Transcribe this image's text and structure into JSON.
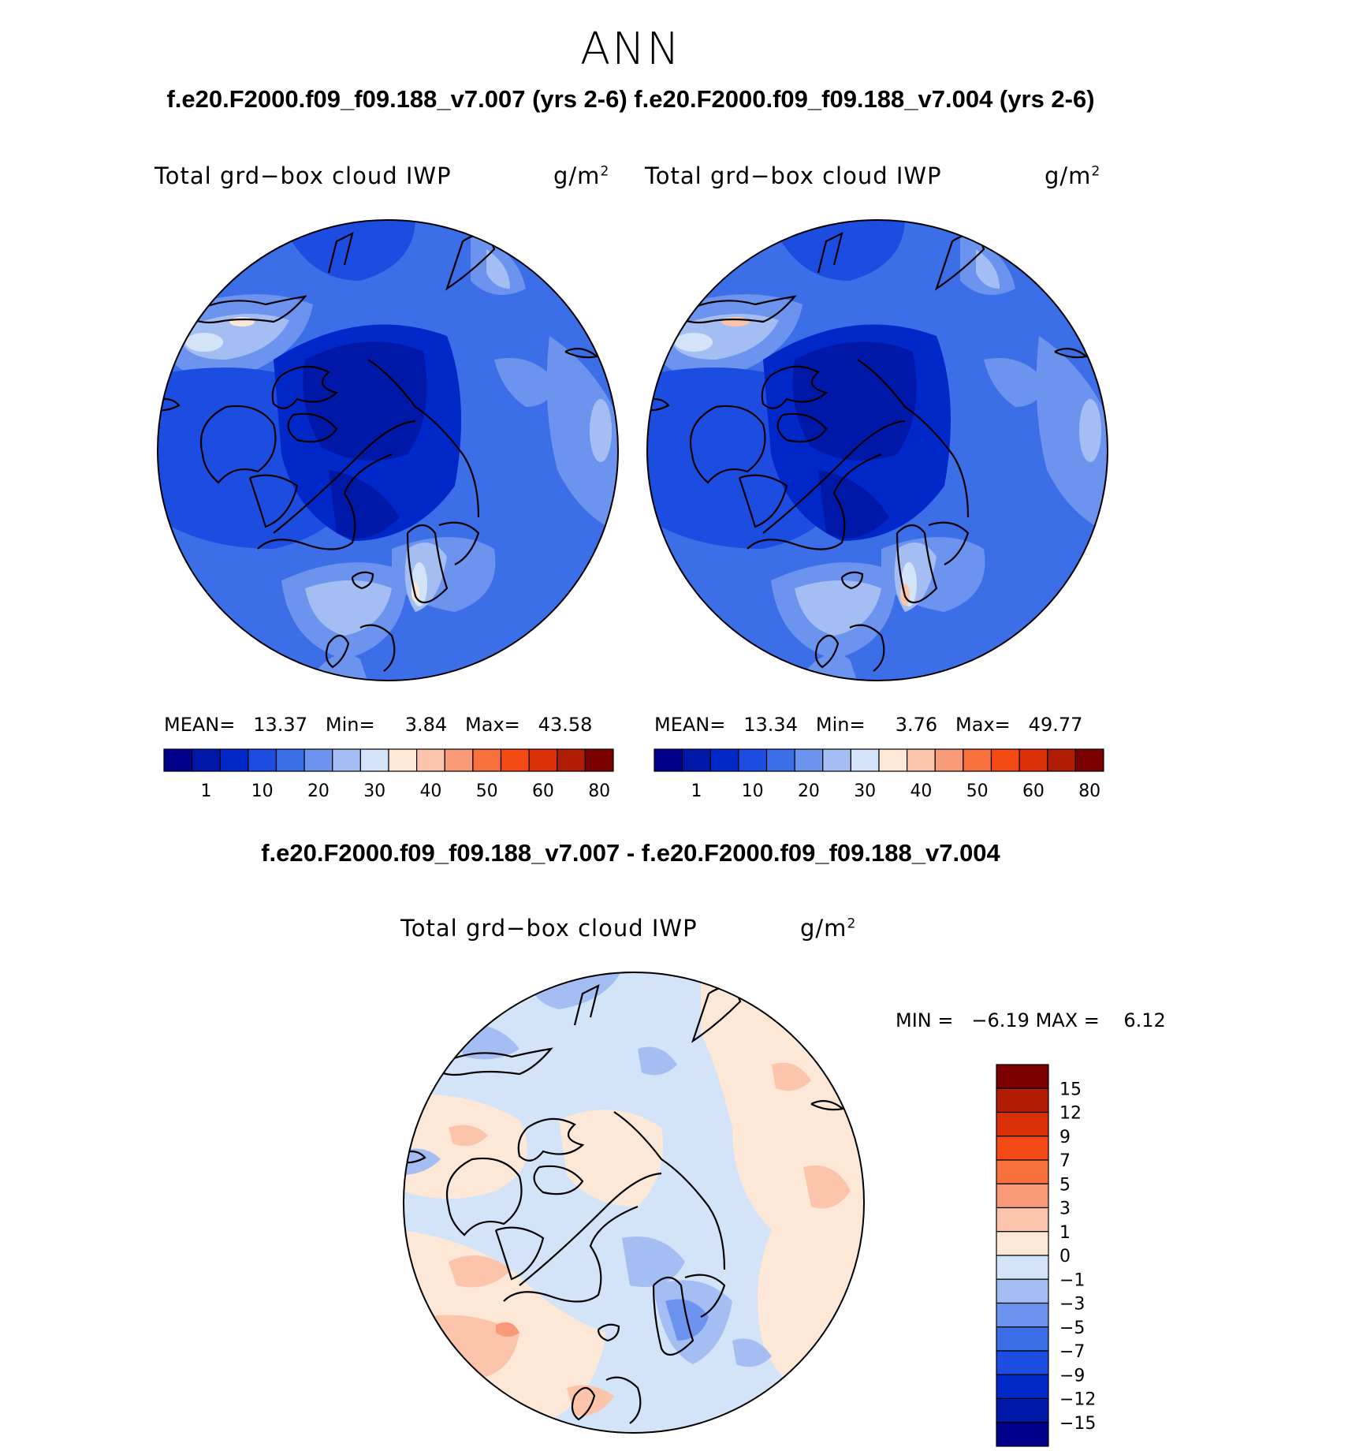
{
  "season": "ANN",
  "case_titles": "f.e20.F2000.f09_f09.188_v7.007 (yrs 2-6) f.e20.F2000.f09_f09.188_v7.004 (yrs 2-6)",
  "diff_title": "f.e20.F2000.f09_f09.188_v7.007 - f.e20.F2000.f09_f09.188_v7.004",
  "panels": [
    {
      "variable": "Total grd−box cloud IWP",
      "units": "g/m",
      "units_sup": "2",
      "mean_label": "MEAN=",
      "mean": "13.37",
      "min_label": "Min=",
      "min": "3.84",
      "max_label": "Max=",
      "max": "43.58"
    },
    {
      "variable": "Total grd−box cloud IWP",
      "units": "g/m",
      "units_sup": "2",
      "mean_label": "MEAN=",
      "mean": "13.34",
      "min_label": "Min=",
      "min": "3.76",
      "max_label": "Max=",
      "max": "49.77"
    }
  ],
  "diff_panel": {
    "variable": "Total grd−box cloud IWP",
    "units": "g/m",
    "units_sup": "2",
    "min_label": "MIN =",
    "min": "−6.19",
    "max_label": "MAX =",
    "max": "6.12"
  },
  "colorbar_ticks": [
    "1",
    "10",
    "20",
    "30",
    "40",
    "50",
    "60",
    "80"
  ],
  "colorbar_colors": [
    "#00008a",
    "#0018a8",
    "#0028c8",
    "#1c4de0",
    "#3c6ee8",
    "#6c94ee",
    "#a4bef4",
    "#d4e4f8",
    "#fde8d8",
    "#fcc4aa",
    "#f89a78",
    "#f8703c",
    "#f44a14",
    "#dc3008",
    "#b01c04",
    "#7c0000"
  ],
  "diff_ticks": [
    "15",
    "12",
    "9",
    "7",
    "5",
    "3",
    "1",
    "0",
    "−1",
    "−3",
    "−5",
    "−7",
    "−9",
    "−12",
    "−15"
  ],
  "diff_colors": [
    "#7c0000",
    "#b01c04",
    "#dc3008",
    "#f44a14",
    "#f8703c",
    "#f89a78",
    "#fcc4aa",
    "#fde8d8",
    "#d4e4f8",
    "#a4bef4",
    "#6c94ee",
    "#3c6ee8",
    "#1c4de0",
    "#0028c8",
    "#0018a8",
    "#00008a"
  ]
}
